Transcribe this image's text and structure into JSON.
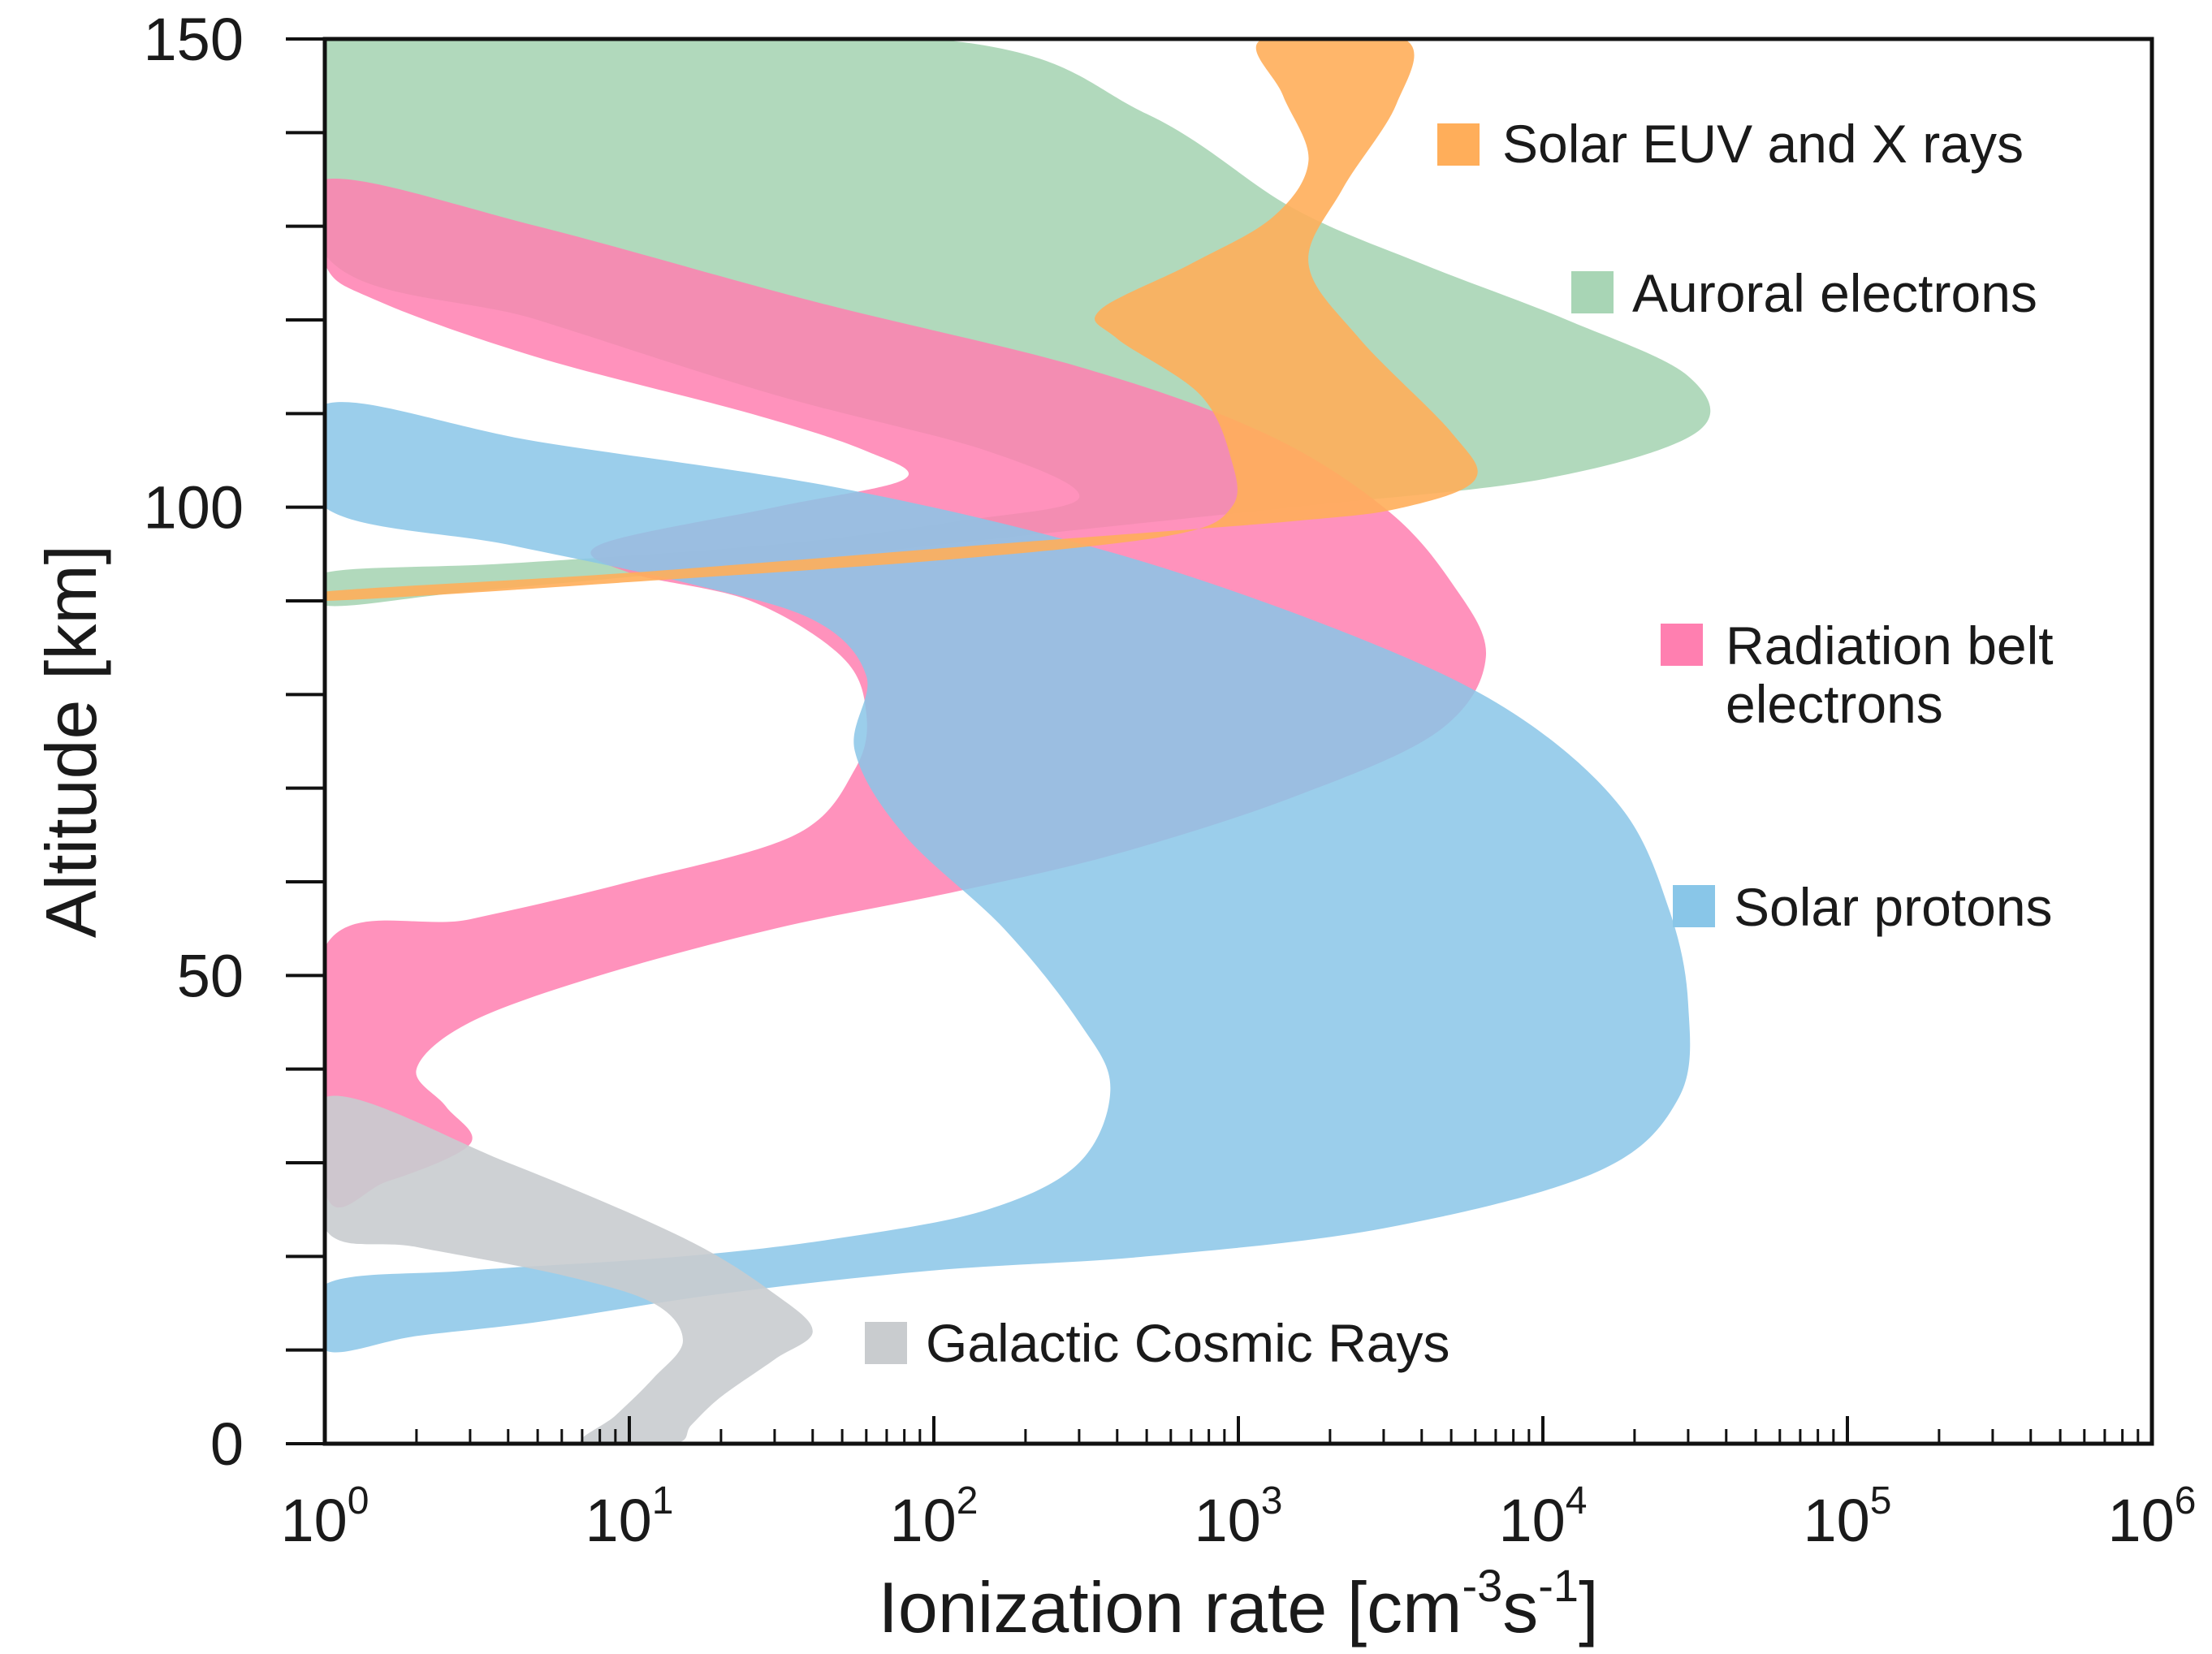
{
  "chart_data": {
    "type": "area",
    "title": "",
    "xlabel": "Ionization rate [cm-3s-1]",
    "xlabel_parts": {
      "main": "Ionization rate [cm",
      "sup1": "-3",
      "mid": "s",
      "sup2": "-1",
      "end": "]"
    },
    "ylabel": "Altitude [km]",
    "x_scale": "log",
    "xlim": [
      1,
      1000000
    ],
    "ylim": [
      0,
      150
    ],
    "x_ticks": [
      {
        "base": "10",
        "exp": "0"
      },
      {
        "base": "10",
        "exp": "1"
      },
      {
        "base": "10",
        "exp": "2"
      },
      {
        "base": "10",
        "exp": "3"
      },
      {
        "base": "10",
        "exp": "4"
      },
      {
        "base": "10",
        "exp": "5"
      },
      {
        "base": "10",
        "exp": "6"
      }
    ],
    "y_ticks": [
      "0",
      "50",
      "100",
      "150"
    ],
    "grid": false,
    "legend_position": "inside-right",
    "series": [
      {
        "name": "Auroral electrons",
        "color": "#a8d5b5",
        "opacity": 0.9,
        "boundary": [
          [
            1,
            150
          ],
          [
            100,
            150
          ],
          [
            500,
            142
          ],
          [
            1500,
            132
          ],
          [
            4000,
            126
          ],
          [
            12000,
            120
          ],
          [
            30000,
            114
          ],
          [
            32000,
            108
          ],
          [
            10000,
            103
          ],
          [
            1500,
            100
          ],
          [
            200,
            97
          ],
          [
            20,
            93.5
          ],
          [
            3,
            91
          ],
          [
            1,
            89.5
          ],
          [
            1,
            93
          ],
          [
            4,
            94
          ],
          [
            30,
            96
          ],
          [
            120,
            98.5
          ],
          [
            300,
            101
          ],
          [
            150,
            106
          ],
          [
            30,
            112
          ],
          [
            5,
            120
          ],
          [
            1,
            127
          ]
        ]
      },
      {
        "name": "Radiation belt electrons",
        "color": "#ff7fb0",
        "opacity": 0.85,
        "boundary": [
          [
            1,
            135
          ],
          [
            5,
            130
          ],
          [
            40,
            122
          ],
          [
            300,
            115
          ],
          [
            1200,
            108
          ],
          [
            3000,
            100
          ],
          [
            5000,
            92
          ],
          [
            6500,
            84
          ],
          [
            4500,
            76
          ],
          [
            1500,
            69
          ],
          [
            400,
            63
          ],
          [
            120,
            59
          ],
          [
            30,
            55
          ],
          [
            8,
            50
          ],
          [
            3,
            45
          ],
          [
            2,
            40
          ],
          [
            2.5,
            36
          ],
          [
            3,
            32
          ],
          [
            1.6,
            28
          ],
          [
            1,
            27
          ],
          [
            1,
            53
          ],
          [
            3,
            56
          ],
          [
            10,
            60
          ],
          [
            35,
            65
          ],
          [
            55,
            72
          ],
          [
            60,
            78
          ],
          [
            50,
            84
          ],
          [
            25,
            90
          ],
          [
            10,
            93
          ],
          [
            8,
            96
          ],
          [
            30,
            100
          ],
          [
            80,
            103
          ],
          [
            60,
            106
          ],
          [
            25,
            110
          ],
          [
            5,
            116
          ],
          [
            1.5,
            122
          ],
          [
            1,
            126
          ]
        ]
      },
      {
        "name": "Solar protons",
        "color": "#89c6e8",
        "opacity": 0.85,
        "boundary": [
          [
            1,
            111
          ],
          [
            5,
            107
          ],
          [
            50,
            102
          ],
          [
            400,
            95
          ],
          [
            2500,
            86
          ],
          [
            8000,
            78
          ],
          [
            18000,
            68
          ],
          [
            26000,
            57
          ],
          [
            30000,
            47
          ],
          [
            28000,
            37
          ],
          [
            15000,
            29
          ],
          [
            3000,
            23
          ],
          [
            500,
            20
          ],
          [
            100,
            18.5
          ],
          [
            20,
            16
          ],
          [
            5,
            13
          ],
          [
            2,
            11.5
          ],
          [
            1,
            10
          ],
          [
            1,
            17
          ],
          [
            3,
            18.5
          ],
          [
            15,
            20
          ],
          [
            50,
            22
          ],
          [
            150,
            25
          ],
          [
            300,
            30
          ],
          [
            380,
            38
          ],
          [
            300,
            45
          ],
          [
            170,
            55
          ],
          [
            80,
            65
          ],
          [
            55,
            74
          ],
          [
            60,
            82
          ],
          [
            40,
            88
          ],
          [
            15,
            92
          ],
          [
            4,
            96
          ],
          [
            1,
            100
          ]
        ]
      },
      {
        "name": "Solar EUV and X rays",
        "color": "#ffae5a",
        "opacity": 0.9,
        "boundary": [
          [
            1200,
            150
          ],
          [
            3500,
            150
          ],
          [
            3300,
            143
          ],
          [
            2200,
            134
          ],
          [
            1700,
            126
          ],
          [
            2500,
            118
          ],
          [
            5000,
            108
          ],
          [
            6000,
            103
          ],
          [
            3500,
            100
          ],
          [
            1500,
            98.5
          ],
          [
            150,
            96
          ],
          [
            10,
            93
          ],
          [
            1,
            91
          ],
          [
            1,
            90
          ],
          [
            10,
            92
          ],
          [
            120,
            94.5
          ],
          [
            600,
            97
          ],
          [
            950,
            100
          ],
          [
            950,
            105
          ],
          [
            750,
            112
          ],
          [
            400,
            118
          ],
          [
            350,
            121
          ],
          [
            700,
            126
          ],
          [
            1300,
            131
          ],
          [
            1700,
            137
          ],
          [
            1400,
            144
          ]
        ]
      },
      {
        "name": "Galactic Cosmic Rays",
        "color": "#c9cccf",
        "opacity": 0.9,
        "boundary": [
          [
            1,
            37
          ],
          [
            4,
            30
          ],
          [
            15,
            22
          ],
          [
            30,
            16
          ],
          [
            40,
            12
          ],
          [
            30,
            9
          ],
          [
            20,
            5
          ],
          [
            16,
            2
          ],
          [
            14,
            0
          ],
          [
            7,
            0
          ],
          [
            9,
            3
          ],
          [
            12,
            7
          ],
          [
            15,
            11
          ],
          [
            12,
            15
          ],
          [
            6,
            18
          ],
          [
            2,
            21
          ],
          [
            1,
            23
          ]
        ]
      }
    ],
    "legend": [
      {
        "label_lines": [
          "Solar EUV and X rays"
        ],
        "color": "#ffae5a"
      },
      {
        "label_lines": [
          "Auroral electrons"
        ],
        "color": "#a8d5b5"
      },
      {
        "label_lines": [
          "Radiation belt",
          "electrons"
        ],
        "color": "#ff7fb0"
      },
      {
        "label_lines": [
          "Solar protons"
        ],
        "color": "#89c6e8"
      },
      {
        "label_lines": [
          "Galactic Cosmic Rays"
        ],
        "color": "#c9cccf"
      }
    ]
  }
}
